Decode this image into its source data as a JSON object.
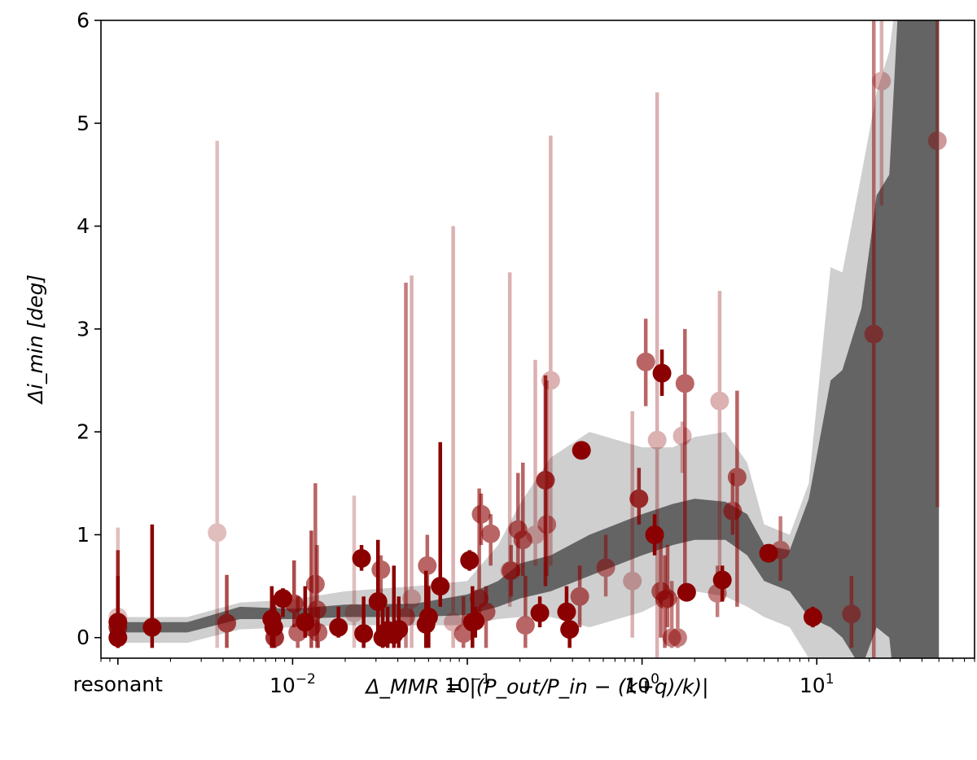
{
  "chart_data": {
    "type": "scatter",
    "title": "",
    "xlabel": "Δ_MMR = |(P_out/P_in − (k+q)/k)|",
    "ylabel": "Δi_min [deg]",
    "xscale": "log",
    "xlim": [
      0.0008,
      80
    ],
    "ylim": [
      -0.2,
      6
    ],
    "grid": false,
    "legend": "none",
    "x_special_tick": {
      "label": "resonant",
      "x": 0.001
    },
    "x_ticks": [
      {
        "base": "10",
        "exp": "−2",
        "x": 0.01
      },
      {
        "base": "10",
        "exp": "−1",
        "x": 0.1
      },
      {
        "base": "10",
        "exp": "0",
        "x": 1
      },
      {
        "base": "10",
        "exp": "1",
        "x": 10
      }
    ],
    "y_ticks": [
      0,
      1,
      2,
      3,
      4,
      5,
      6
    ],
    "colors": {
      "points": "#8b0000",
      "band_inner": "#646464",
      "band_outer": "#cfcfcf"
    },
    "band_x": [
      0.0009,
      0.0025,
      0.005,
      0.01,
      0.02,
      0.05,
      0.1,
      0.15,
      0.2,
      0.3,
      0.5,
      1.0,
      1.5,
      2.0,
      3.0,
      4.0,
      5.0,
      7.0,
      9.0,
      12,
      14,
      18,
      22,
      26,
      30,
      40,
      50
    ],
    "band_outer_upper": [
      0.2,
      0.2,
      0.34,
      0.37,
      0.45,
      0.5,
      0.55,
      0.9,
      1.3,
      1.75,
      2.0,
      1.85,
      1.85,
      1.95,
      2.0,
      1.7,
      1.1,
      1.0,
      1.5,
      3.6,
      3.55,
      4.5,
      5.3,
      5.7,
      6.5,
      6.5,
      6.5
    ],
    "band_outer_lower": [
      -0.05,
      -0.05,
      0.08,
      0.1,
      0.12,
      0.12,
      0.12,
      0.18,
      0.2,
      0.2,
      0.1,
      0.25,
      0.4,
      0.45,
      0.4,
      0.3,
      0.2,
      0.1,
      -0.2,
      -0.5,
      -0.6,
      -0.8,
      -0.4,
      -0.8,
      -1.0,
      -1.0,
      -1.0
    ],
    "band_inner_upper": [
      0.15,
      0.15,
      0.3,
      0.28,
      0.32,
      0.33,
      0.42,
      0.55,
      0.72,
      0.8,
      1.0,
      1.2,
      1.3,
      1.35,
      1.32,
      1.2,
      0.9,
      0.85,
      1.35,
      2.5,
      2.6,
      3.2,
      4.3,
      4.5,
      6.5,
      6.5,
      6.5
    ],
    "band_inner_lower": [
      0.05,
      0.05,
      0.18,
      0.18,
      0.2,
      0.2,
      0.22,
      0.3,
      0.38,
      0.45,
      0.6,
      0.8,
      0.9,
      0.95,
      0.95,
      0.8,
      0.55,
      0.45,
      0.2,
      0.1,
      0.0,
      -0.3,
      0.1,
      0.0,
      -1.0,
      -1.0,
      -1.0
    ],
    "points": [
      {
        "x": 0.001,
        "y": 0.2,
        "lo": 0.0,
        "hi": 1.07,
        "a": 0.25
      },
      {
        "x": 0.001,
        "y": 0.1,
        "lo": -0.1,
        "hi": 0.85,
        "a": 0.8
      },
      {
        "x": 0.001,
        "y": 0.0,
        "lo": -0.1,
        "hi": 0.6,
        "a": 1
      },
      {
        "x": 0.001,
        "y": 0.15,
        "lo": 0.0,
        "hi": 0.4,
        "a": 1
      },
      {
        "x": 0.00157,
        "y": 0.1,
        "lo": -0.1,
        "hi": 1.1,
        "a": 1
      },
      {
        "x": 0.0037,
        "y": 1.02,
        "lo": -0.1,
        "hi": 4.83,
        "a": 0.25
      },
      {
        "x": 0.0042,
        "y": 0.14,
        "lo": -0.1,
        "hi": 0.61,
        "a": 0.7
      },
      {
        "x": 0.0076,
        "y": 0.18,
        "lo": -0.1,
        "hi": 0.5,
        "a": 1
      },
      {
        "x": 0.0078,
        "y": 0.1,
        "lo": -0.1,
        "hi": 0.41,
        "a": 1
      },
      {
        "x": 0.0079,
        "y": 0.0,
        "lo": -0.1,
        "hi": 0.3,
        "a": 0.8
      },
      {
        "x": 0.0088,
        "y": 0.38,
        "lo": 0.2,
        "hi": 0.48,
        "a": 1
      },
      {
        "x": 0.0102,
        "y": 0.33,
        "lo": 0.1,
        "hi": 0.75,
        "a": 0.7
      },
      {
        "x": 0.0107,
        "y": 0.05,
        "lo": -0.1,
        "hi": 0.4,
        "a": 0.6
      },
      {
        "x": 0.0118,
        "y": 0.15,
        "lo": 0.0,
        "hi": 0.5,
        "a": 1
      },
      {
        "x": 0.0128,
        "y": 0.1,
        "lo": -0.1,
        "hi": 1.04,
        "a": 0.7
      },
      {
        "x": 0.0135,
        "y": 0.52,
        "lo": 0.2,
        "hi": 1.5,
        "a": 0.6
      },
      {
        "x": 0.0138,
        "y": 0.27,
        "lo": -0.1,
        "hi": 0.9,
        "a": 0.6
      },
      {
        "x": 0.014,
        "y": 0.05,
        "lo": -0.1,
        "hi": 0.3,
        "a": 0.6
      },
      {
        "x": 0.0183,
        "y": 0.1,
        "lo": 0.0,
        "hi": 0.3,
        "a": 1
      },
      {
        "x": 0.0225,
        "y": 0.24,
        "lo": -0.1,
        "hi": 1.38,
        "a": 0.25
      },
      {
        "x": 0.0248,
        "y": 0.77,
        "lo": 0.65,
        "hi": 0.9,
        "a": 1
      },
      {
        "x": 0.0255,
        "y": 0.04,
        "lo": -0.1,
        "hi": 0.4,
        "a": 1
      },
      {
        "x": 0.0308,
        "y": 0.35,
        "lo": 0.05,
        "hi": 0.95,
        "a": 1
      },
      {
        "x": 0.032,
        "y": 0.66,
        "lo": 0.3,
        "hi": 0.8,
        "a": 0.6
      },
      {
        "x": 0.0328,
        "y": 0.0,
        "lo": -0.1,
        "hi": 0.4,
        "a": 1
      },
      {
        "x": 0.035,
        "y": 0.07,
        "lo": -0.1,
        "hi": 0.3,
        "a": 1
      },
      {
        "x": 0.038,
        "y": 0.03,
        "lo": -0.1,
        "hi": 0.7,
        "a": 1
      },
      {
        "x": 0.0405,
        "y": 0.08,
        "lo": -0.1,
        "hi": 0.4,
        "a": 1
      },
      {
        "x": 0.0445,
        "y": 0.2,
        "lo": -0.1,
        "hi": 3.45,
        "a": 0.5
      },
      {
        "x": 0.048,
        "y": 0.38,
        "lo": -0.1,
        "hi": 3.52,
        "a": 0.3
      },
      {
        "x": 0.058,
        "y": 0.13,
        "lo": -0.1,
        "hi": 0.65,
        "a": 1
      },
      {
        "x": 0.059,
        "y": 0.7,
        "lo": 0.3,
        "hi": 1.0,
        "a": 0.6
      },
      {
        "x": 0.06,
        "y": 0.2,
        "lo": -0.1,
        "hi": 0.5,
        "a": 1
      },
      {
        "x": 0.07,
        "y": 0.5,
        "lo": 0.3,
        "hi": 1.9,
        "a": 1
      },
      {
        "x": 0.083,
        "y": 0.15,
        "lo": -0.1,
        "hi": 4.0,
        "a": 0.3
      },
      {
        "x": 0.095,
        "y": 0.04,
        "lo": -0.1,
        "hi": 0.4,
        "a": 0.6
      },
      {
        "x": 0.103,
        "y": 0.75,
        "lo": 0.65,
        "hi": 0.85,
        "a": 1
      },
      {
        "x": 0.107,
        "y": 0.15,
        "lo": -0.1,
        "hi": 0.5,
        "a": 1
      },
      {
        "x": 0.111,
        "y": 0.16,
        "lo": 0.0,
        "hi": 0.3,
        "a": 1
      },
      {
        "x": 0.117,
        "y": 0.38,
        "lo": 0.2,
        "hi": 1.45,
        "a": 0.6
      },
      {
        "x": 0.12,
        "y": 1.2,
        "lo": 0.9,
        "hi": 1.4,
        "a": 0.6
      },
      {
        "x": 0.128,
        "y": 0.25,
        "lo": -0.1,
        "hi": 0.5,
        "a": 0.6
      },
      {
        "x": 0.136,
        "y": 1.01,
        "lo": 0.7,
        "hi": 1.2,
        "a": 0.6
      },
      {
        "x": 0.175,
        "y": 0.65,
        "lo": 0.3,
        "hi": 3.55,
        "a": 0.3
      },
      {
        "x": 0.178,
        "y": 0.65,
        "lo": 0.4,
        "hi": 0.9,
        "a": 0.6
      },
      {
        "x": 0.195,
        "y": 1.05,
        "lo": 0.6,
        "hi": 1.6,
        "a": 0.6
      },
      {
        "x": 0.208,
        "y": 0.95,
        "lo": 0.6,
        "hi": 1.7,
        "a": 0.6
      },
      {
        "x": 0.215,
        "y": 0.12,
        "lo": -0.1,
        "hi": 0.6,
        "a": 0.6
      },
      {
        "x": 0.245,
        "y": 1.0,
        "lo": 0.7,
        "hi": 2.7,
        "a": 0.3
      },
      {
        "x": 0.26,
        "y": 0.24,
        "lo": 0.1,
        "hi": 0.4,
        "a": 1
      },
      {
        "x": 0.28,
        "y": 1.53,
        "lo": 0.5,
        "hi": 2.55,
        "a": 0.8
      },
      {
        "x": 0.285,
        "y": 1.1,
        "lo": 0.6,
        "hi": 2.5,
        "a": 0.5
      },
      {
        "x": 0.3,
        "y": 2.5,
        "lo": 0.7,
        "hi": 4.88,
        "a": 0.3
      },
      {
        "x": 0.37,
        "y": 0.25,
        "lo": 0.1,
        "hi": 0.5,
        "a": 1
      },
      {
        "x": 0.385,
        "y": 0.08,
        "lo": -0.1,
        "hi": 0.2,
        "a": 1
      },
      {
        "x": 0.44,
        "y": 0.4,
        "lo": 0.1,
        "hi": 0.7,
        "a": 0.6
      },
      {
        "x": 0.45,
        "y": 1.82,
        "lo": 1.8,
        "hi": 1.85,
        "a": 1
      },
      {
        "x": 0.62,
        "y": 0.68,
        "lo": 0.4,
        "hi": 1.0,
        "a": 0.5
      },
      {
        "x": 0.88,
        "y": 0.55,
        "lo": 0.0,
        "hi": 2.2,
        "a": 0.3
      },
      {
        "x": 0.96,
        "y": 1.35,
        "lo": 1.1,
        "hi": 1.65,
        "a": 0.8
      },
      {
        "x": 1.05,
        "y": 2.68,
        "lo": 2.25,
        "hi": 3.1,
        "a": 0.6
      },
      {
        "x": 1.18,
        "y": 1.0,
        "lo": 0.8,
        "hi": 1.2,
        "a": 1
      },
      {
        "x": 1.22,
        "y": 1.92,
        "lo": -0.2,
        "hi": 5.3,
        "a": 0.3
      },
      {
        "x": 1.28,
        "y": 0.45,
        "lo": 0.0,
        "hi": 1.0,
        "a": 0.6
      },
      {
        "x": 1.3,
        "y": 2.57,
        "lo": 2.35,
        "hi": 2.8,
        "a": 1
      },
      {
        "x": 1.35,
        "y": 0.37,
        "lo": -0.1,
        "hi": 0.8,
        "a": 0.6
      },
      {
        "x": 1.4,
        "y": 0.38,
        "lo": 0.1,
        "hi": 0.9,
        "a": 0.6
      },
      {
        "x": 1.48,
        "y": 0.0,
        "lo": -0.1,
        "hi": 0.55,
        "a": 0.5
      },
      {
        "x": 1.6,
        "y": 0.0,
        "lo": -0.1,
        "hi": 0.4,
        "a": 0.5
      },
      {
        "x": 1.7,
        "y": 1.96,
        "lo": 1.6,
        "hi": 2.1,
        "a": 0.3
      },
      {
        "x": 1.76,
        "y": 2.47,
        "lo": 0.4,
        "hi": 3.0,
        "a": 0.6
      },
      {
        "x": 1.8,
        "y": 0.44,
        "lo": 0.35,
        "hi": 0.5,
        "a": 1
      },
      {
        "x": 2.7,
        "y": 0.43,
        "lo": 0.2,
        "hi": 0.7,
        "a": 0.5
      },
      {
        "x": 2.78,
        "y": 2.3,
        "lo": 0.6,
        "hi": 3.37,
        "a": 0.3
      },
      {
        "x": 2.88,
        "y": 0.56,
        "lo": 0.35,
        "hi": 0.7,
        "a": 1
      },
      {
        "x": 3.3,
        "y": 1.23,
        "lo": 1.0,
        "hi": 1.6,
        "a": 0.6
      },
      {
        "x": 3.5,
        "y": 1.56,
        "lo": 0.3,
        "hi": 2.4,
        "a": 0.6
      },
      {
        "x": 5.3,
        "y": 0.82,
        "lo": 0.75,
        "hi": 0.9,
        "a": 1
      },
      {
        "x": 6.2,
        "y": 0.85,
        "lo": 0.55,
        "hi": 1.18,
        "a": 0.5
      },
      {
        "x": 9.5,
        "y": 0.2,
        "lo": 0.1,
        "hi": 0.3,
        "a": 1
      },
      {
        "x": 15.8,
        "y": 0.23,
        "lo": -0.1,
        "hi": 0.6,
        "a": 0.5
      },
      {
        "x": 21.2,
        "y": 2.95,
        "lo": -0.2,
        "hi": 6.0,
        "a": 0.5
      },
      {
        "x": 23.5,
        "y": 5.41,
        "lo": 4.2,
        "hi": 6.0,
        "a": 0.3
      },
      {
        "x": 49.0,
        "y": 4.83,
        "lo": 1.27,
        "hi": 6.0,
        "a": 0.4
      }
    ]
  }
}
